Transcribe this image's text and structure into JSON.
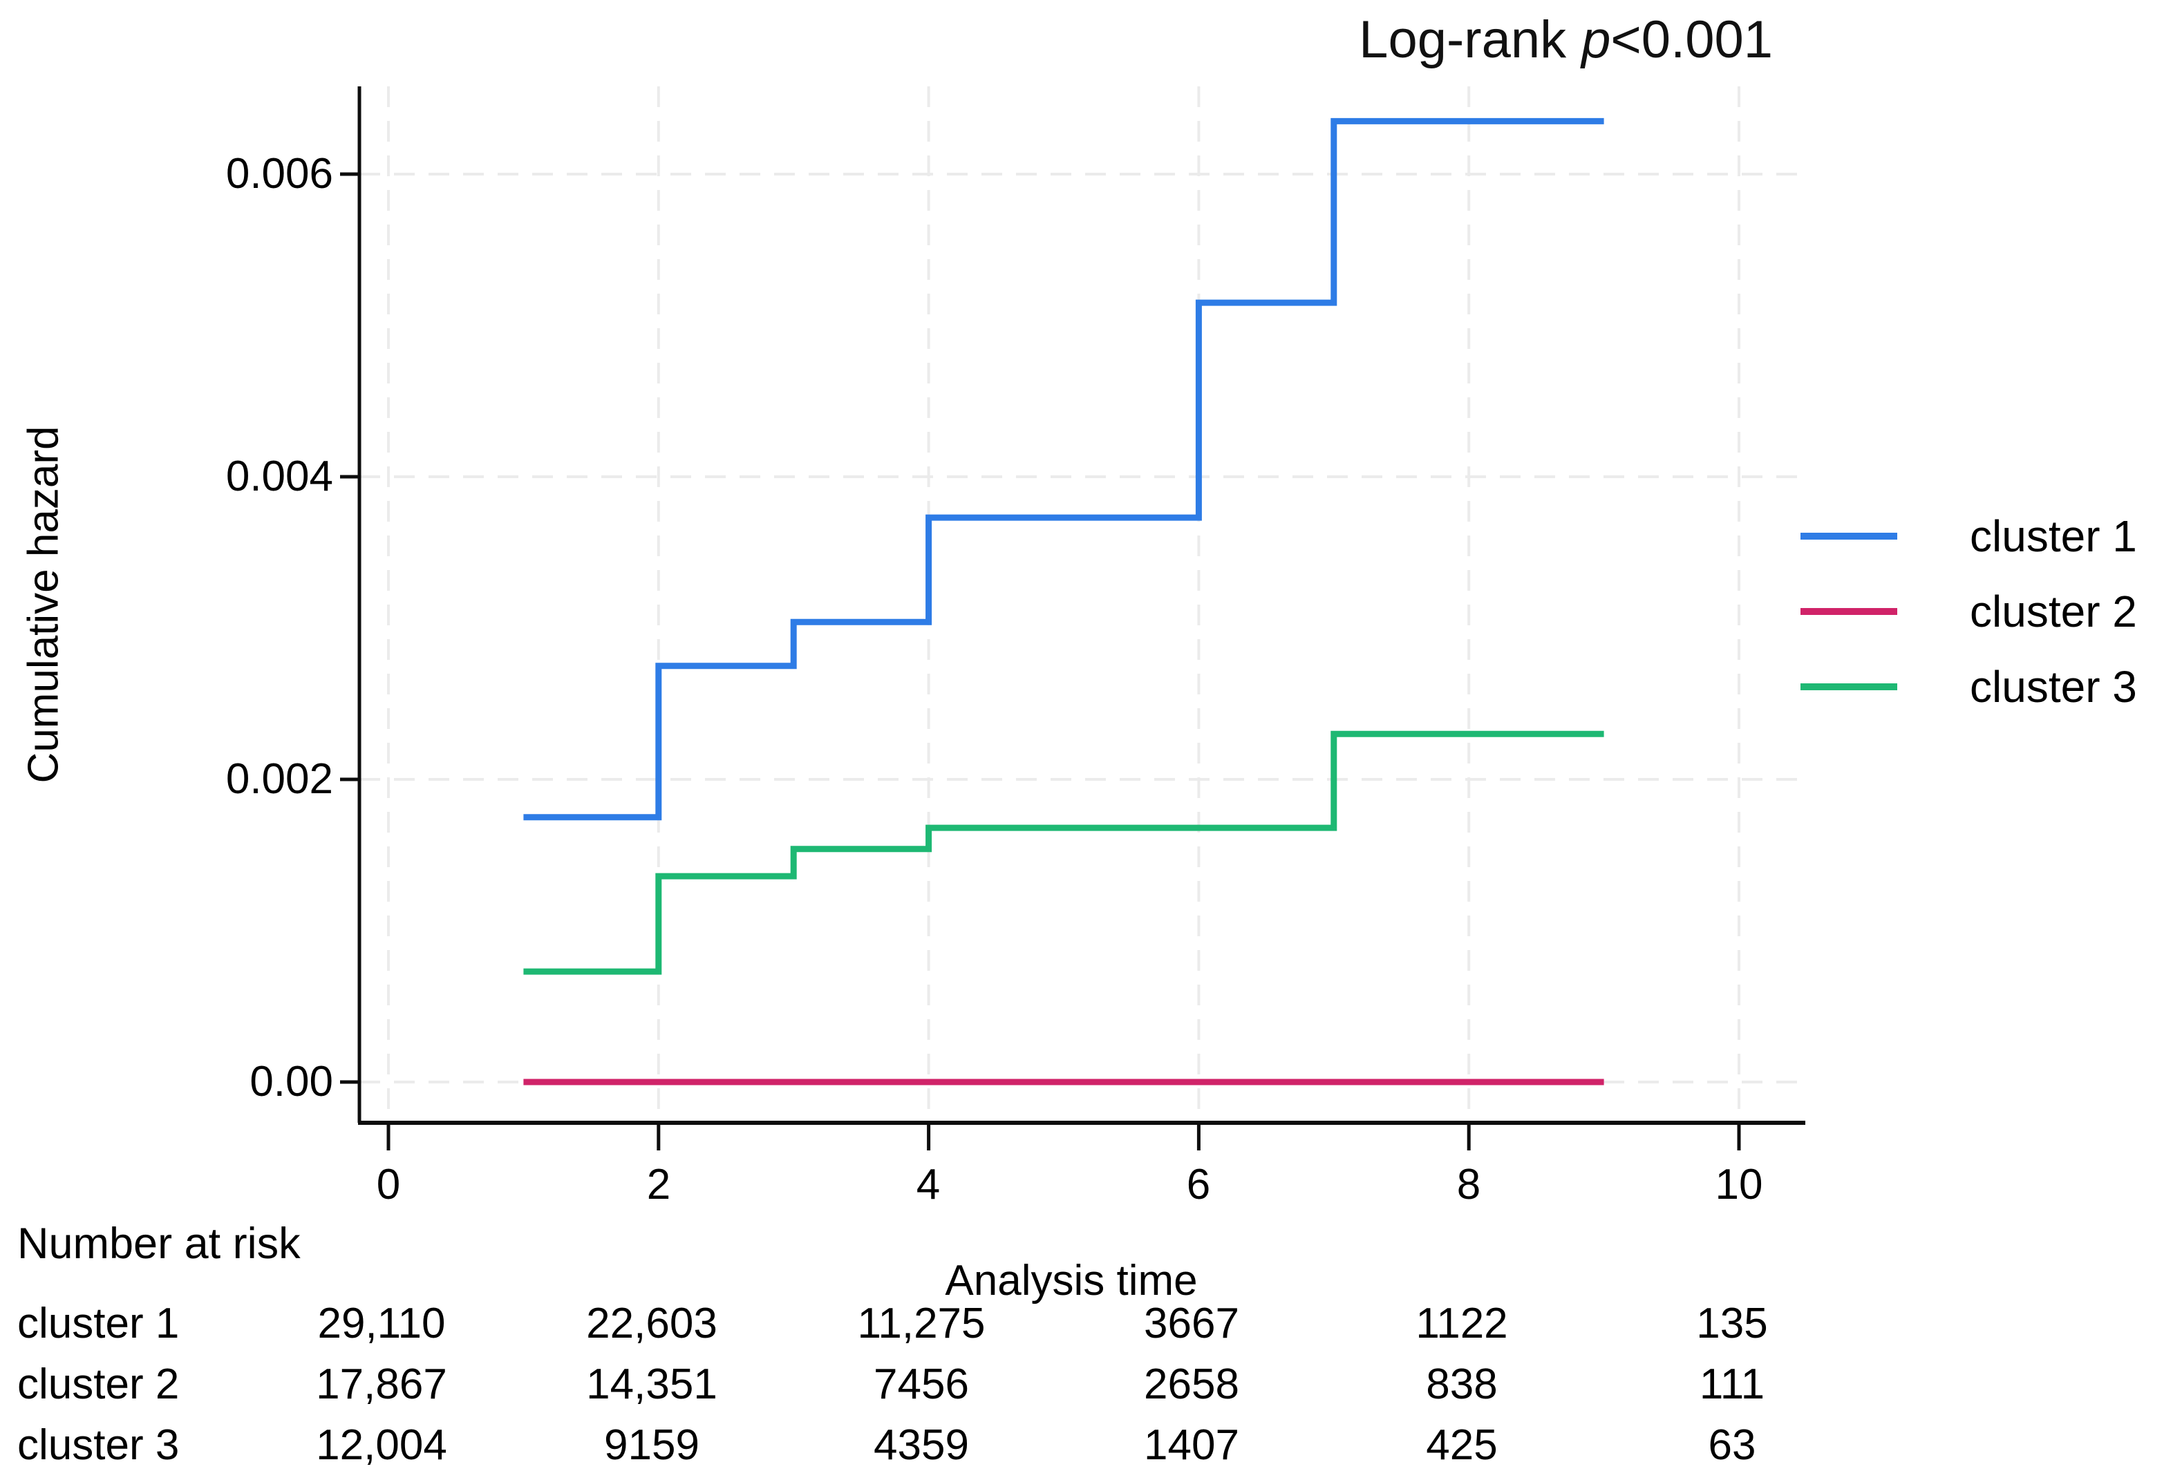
{
  "figure": {
    "title": {
      "prefix": "Log-rank",
      "p": "p",
      "suffix": "<0.001"
    },
    "y_axis_title": "Cumulative hazard",
    "x_axis_title": "Analysis time"
  },
  "chart_data": {
    "type": "line",
    "subtype": "step-after cumulative hazard curves (survival analysis)",
    "title": "Log-rank p<0.001",
    "xlabel": "Analysis time",
    "ylabel": "Cumulative hazard",
    "x_axis": {
      "ticks": [
        0,
        2,
        4,
        6,
        8,
        10
      ],
      "range": [
        0,
        10.5
      ]
    },
    "y_axis": {
      "ticks": [
        0,
        0.002,
        0.004,
        0.006
      ],
      "tick_labels": [
        "0.00",
        "0.002",
        "0.004",
        "0.006"
      ],
      "range": [
        0,
        0.0066
      ]
    },
    "grid": "dashed light-gray gridlines at all x and y ticks",
    "legend_position": "right",
    "series": [
      {
        "name": "cluster 1",
        "color": "#2E7CE6",
        "points": [
          [
            1,
            0.00175
          ],
          [
            2,
            0.00275
          ],
          [
            3,
            0.00304
          ],
          [
            4,
            0.00373
          ],
          [
            6,
            0.00515
          ],
          [
            7,
            0.00635
          ],
          [
            9,
            0.00635
          ]
        ]
      },
      {
        "name": "cluster 2",
        "color": "#D02368",
        "points": [
          [
            1,
            0
          ],
          [
            9,
            0
          ]
        ]
      },
      {
        "name": "cluster 3",
        "color": "#1EB873",
        "points": [
          [
            1,
            0.00073
          ],
          [
            2,
            0.00136
          ],
          [
            3,
            0.00154
          ],
          [
            4,
            0.00168
          ],
          [
            7,
            0.0023
          ],
          [
            9,
            0.0023
          ]
        ]
      }
    ]
  },
  "legend": {
    "items": [
      {
        "label": "cluster 1",
        "color": "#2E7CE6"
      },
      {
        "label": "cluster 2",
        "color": "#D02368"
      },
      {
        "label": "cluster 3",
        "color": "#1EB873"
      }
    ]
  },
  "risk_table": {
    "heading": "Number at risk",
    "time_points": [
      0,
      2,
      4,
      6,
      8,
      10
    ],
    "rows": [
      {
        "label": "cluster 1",
        "values": [
          "29,110",
          "22,603",
          "11,275",
          "3667",
          "1122",
          "135"
        ]
      },
      {
        "label": "cluster 2",
        "values": [
          "17,867",
          "14,351",
          "7456",
          "2658",
          "838",
          "111"
        ]
      },
      {
        "label": "cluster 3",
        "values": [
          "12,004",
          "9159",
          "4359",
          "1407",
          "425",
          "63"
        ]
      }
    ]
  }
}
